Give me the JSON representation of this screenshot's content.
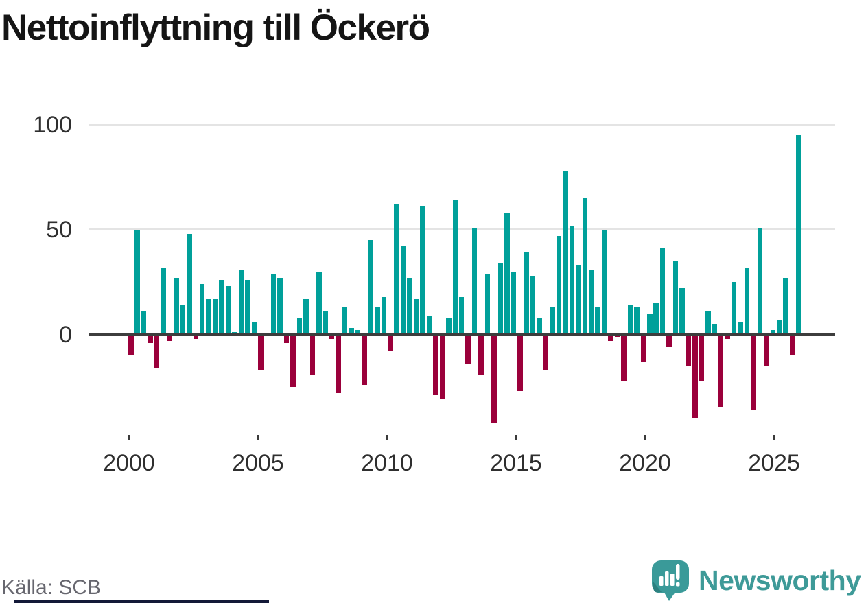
{
  "title": "Nettoinflyttning till Öckerö",
  "source": "Källa: SCB",
  "logo": {
    "brand": "Newsworthy",
    "icon": "newsworthy-bubble-chart-icon"
  },
  "colors": {
    "positive_bar": "#00a09a",
    "negative_bar": "#9b003b",
    "zero_line": "#3d3d3d",
    "gridline": "#e4e4e4",
    "axis_text": "#2f2f2f",
    "brand_teal": "#3e9a98",
    "bottom_strip": "#131938"
  },
  "chart_data": {
    "type": "bar",
    "title": "Nettoinflyttning till Öckerö",
    "frequency": "quarterly",
    "start_period": "2000 Q1",
    "end_period": "2025 Q4",
    "values": [
      -10,
      50,
      11,
      -4,
      -16,
      32,
      -3,
      27,
      14,
      48,
      -2,
      24,
      17,
      17,
      26,
      23,
      1,
      31,
      26,
      6,
      -17,
      0,
      29,
      27,
      -4,
      -25,
      8,
      17,
      -19,
      30,
      11,
      -2,
      -28,
      13,
      3,
      2,
      -24,
      45,
      13,
      18,
      -8,
      62,
      42,
      27,
      17,
      61,
      9,
      -29,
      -31,
      8,
      64,
      18,
      -14,
      51,
      -19,
      29,
      -42,
      34,
      58,
      30,
      -27,
      39,
      28,
      8,
      -17,
      13,
      47,
      78,
      52,
      33,
      65,
      31,
      13,
      50,
      -3,
      -1,
      -22,
      14,
      13,
      -13,
      10,
      15,
      41,
      -6,
      35,
      22,
      -15,
      -40,
      -22,
      11,
      5,
      -35,
      -2,
      25,
      6,
      32,
      -36,
      51,
      -15,
      2,
      7,
      27,
      -10,
      95
    ],
    "y_ticks": [
      100,
      50,
      0
    ],
    "x_ticks": [
      2000,
      2005,
      2010,
      2015,
      2020,
      2025
    ],
    "ylim": [
      -50,
      104
    ],
    "grid": "horizontal-light-plus-dark-zero-line",
    "legend": "none"
  }
}
